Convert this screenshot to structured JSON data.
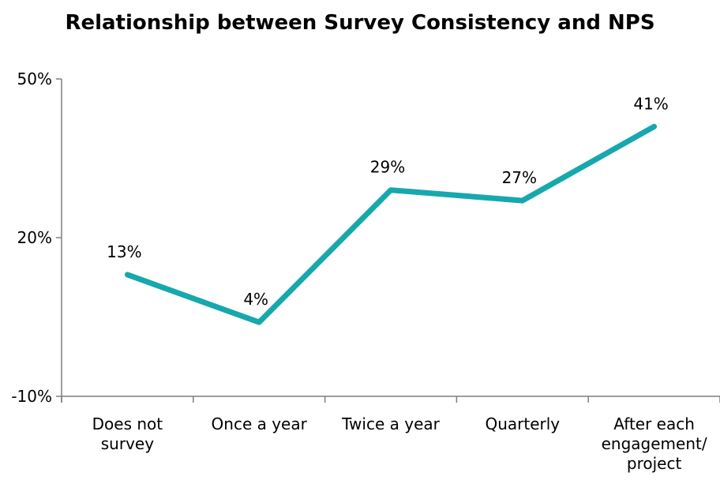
{
  "chart_data": {
    "type": "line",
    "title": "Relationship between Survey Consistency and NPS",
    "categories": [
      [
        "Does not",
        "survey"
      ],
      [
        "Once a year"
      ],
      [
        "Twice a year"
      ],
      [
        "Quarterly"
      ],
      [
        "After each",
        "engagement/",
        "project"
      ]
    ],
    "series": [
      {
        "values": [
          13,
          4,
          29,
          27,
          41
        ],
        "labels": [
          "13%",
          "4%",
          "29%",
          "27%",
          "41%"
        ]
      }
    ],
    "ylim": [
      -10,
      50
    ],
    "yticks": [
      {
        "value": -10,
        "label": "-10%"
      },
      {
        "value": 20,
        "label": "20%"
      },
      {
        "value": 50,
        "label": "50%"
      }
    ],
    "xlabel": "",
    "ylabel": "",
    "grid": false,
    "line_color": "#16a8ad"
  }
}
